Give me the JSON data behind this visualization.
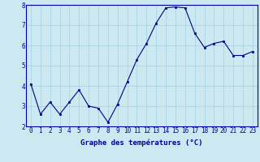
{
  "hours": [
    0,
    1,
    2,
    3,
    4,
    5,
    6,
    7,
    8,
    9,
    10,
    11,
    12,
    13,
    14,
    15,
    16,
    17,
    18,
    19,
    20,
    21,
    22,
    23
  ],
  "temps": [
    4.1,
    2.6,
    3.2,
    2.6,
    3.2,
    3.8,
    3.0,
    2.9,
    2.2,
    3.1,
    4.2,
    5.3,
    6.1,
    7.1,
    7.85,
    7.9,
    7.85,
    6.6,
    5.9,
    6.1,
    6.2,
    5.5,
    5.5,
    5.7
  ],
  "xlabel": "Graphe des températures (°C)",
  "ylim": [
    2,
    8
  ],
  "xlim_min": -0.5,
  "xlim_max": 23.5,
  "yticks": [
    2,
    3,
    4,
    5,
    6,
    7,
    8
  ],
  "xticks": [
    0,
    1,
    2,
    3,
    4,
    5,
    6,
    7,
    8,
    9,
    10,
    11,
    12,
    13,
    14,
    15,
    16,
    17,
    18,
    19,
    20,
    21,
    22,
    23
  ],
  "line_color": "#00008B",
  "marker_color": "#00008B",
  "bg_color": "#cce8f0",
  "grid_color": "#99cce0",
  "axis_bg_color": "#cce8f0",
  "border_color": "#0000aa",
  "xlabel_fontsize": 6.5,
  "tick_fontsize": 5.5,
  "line_width": 0.8,
  "marker_size": 2.0
}
